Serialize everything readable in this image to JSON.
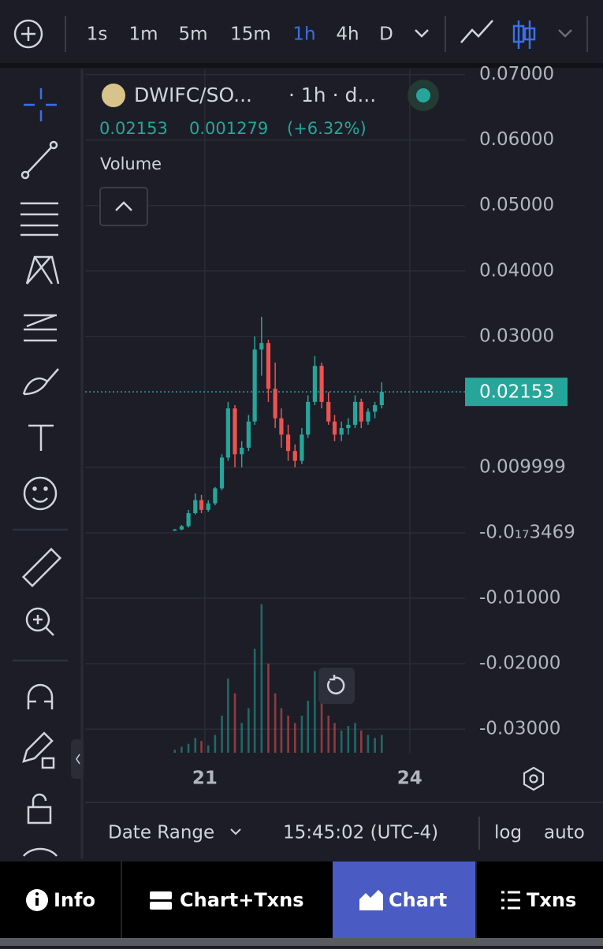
{
  "toolbar": {
    "timeframes": [
      "1s",
      "1m",
      "5m",
      "15m",
      "1h",
      "4h",
      "D"
    ],
    "active": 4
  },
  "legend": {
    "pair": "DWIFC/SO...",
    "interval": "· 1h · d...",
    "change": "0.001279",
    "change_pct": "(+6.32%)",
    "volume": "Volume"
  },
  "footer": {
    "date_range": "Date Range",
    "time": "15:45:02 (UTC-4)",
    "log": "log",
    "auto": "auto"
  },
  "tabs": [
    "Info",
    "Chart+Txns",
    "Chart",
    "Txns"
  ],
  "chart_data": {
    "type": "candlestick",
    "x": [
      20.56,
      20.66,
      20.76,
      20.86,
      20.95,
      21.05,
      21.15,
      21.25,
      21.34,
      21.44,
      21.54,
      21.64,
      21.73,
      21.83,
      21.93,
      22.03,
      22.12,
      22.22,
      22.32,
      22.42,
      22.51,
      22.61,
      22.71,
      22.81,
      22.9,
      23.0,
      23.1,
      23.2,
      23.29,
      23.39,
      23.49,
      23.59
    ],
    "open": [
      0.0004,
      0.0005,
      0.001,
      0.003,
      0.005,
      0.0035,
      0.0045,
      0.0068,
      0.0115,
      0.019,
      0.012,
      0.013,
      0.017,
      0.028,
      0.029,
      0.022,
      0.0175,
      0.015,
      0.0125,
      0.011,
      0.015,
      0.02,
      0.0255,
      0.02,
      0.017,
      0.015,
      0.016,
      0.0165,
      0.02,
      0.017,
      0.0185,
      0.0195
    ],
    "high": [
      0.0006,
      0.0012,
      0.0035,
      0.006,
      0.0058,
      0.005,
      0.007,
      0.012,
      0.02,
      0.0195,
      0.014,
      0.018,
      0.03,
      0.033,
      0.0295,
      0.026,
      0.019,
      0.0165,
      0.0135,
      0.016,
      0.021,
      0.027,
      0.026,
      0.0215,
      0.018,
      0.017,
      0.0175,
      0.021,
      0.0205,
      0.019,
      0.02,
      0.023
    ],
    "low": [
      0.0003,
      0.0004,
      0.0008,
      0.0028,
      0.003,
      0.0032,
      0.0042,
      0.0065,
      0.011,
      0.01,
      0.01,
      0.0125,
      0.0165,
      0.024,
      0.02,
      0.016,
      0.013,
      0.011,
      0.01,
      0.0105,
      0.0145,
      0.0195,
      0.019,
      0.0165,
      0.014,
      0.014,
      0.015,
      0.016,
      0.016,
      0.0165,
      0.0175,
      0.019
    ],
    "close": [
      0.0005,
      0.001,
      0.003,
      0.005,
      0.0035,
      0.0045,
      0.0068,
      0.0115,
      0.019,
      0.012,
      0.013,
      0.017,
      0.028,
      0.029,
      0.022,
      0.0175,
      0.015,
      0.0125,
      0.011,
      0.015,
      0.02,
      0.0255,
      0.02,
      0.017,
      0.015,
      0.016,
      0.0165,
      0.02,
      0.017,
      0.0185,
      0.0195,
      0.02153
    ],
    "volume": [
      2,
      4,
      6,
      10,
      8,
      5,
      12,
      25,
      50,
      40,
      20,
      30,
      70,
      100,
      60,
      40,
      30,
      25,
      20,
      25,
      35,
      55,
      35,
      25,
      20,
      15,
      18,
      20,
      15,
      12,
      10,
      12
    ],
    "last_price": 0.02153,
    "colors": {
      "up": "#26a69a",
      "down": "#ef5350"
    },
    "grid": true,
    "xlim": [
      19.247,
      24.81
    ],
    "xticks": [
      21,
      24
    ],
    "ylim": [
      -0.0336,
      0.0708
    ],
    "yticks": [
      {
        "value": 0.07,
        "label": "0.07000"
      },
      {
        "value": 0.06,
        "label": "0.06000"
      },
      {
        "value": 0.05,
        "label": "0.05000"
      },
      {
        "value": 0.04,
        "label": "0.04000"
      },
      {
        "value": 0.03,
        "label": "0.03000"
      },
      0.009999,
      {
        "value": -3.469e-18,
        "label": "-0.0₁₇3469"
      },
      {
        "value": -0.01,
        "label": "-0.01000"
      },
      {
        "value": -0.02,
        "label": "-0.02000"
      },
      {
        "value": -0.03,
        "label": "-0.03000"
      }
    ],
    "y2lim": [
      0,
      460
    ]
  }
}
